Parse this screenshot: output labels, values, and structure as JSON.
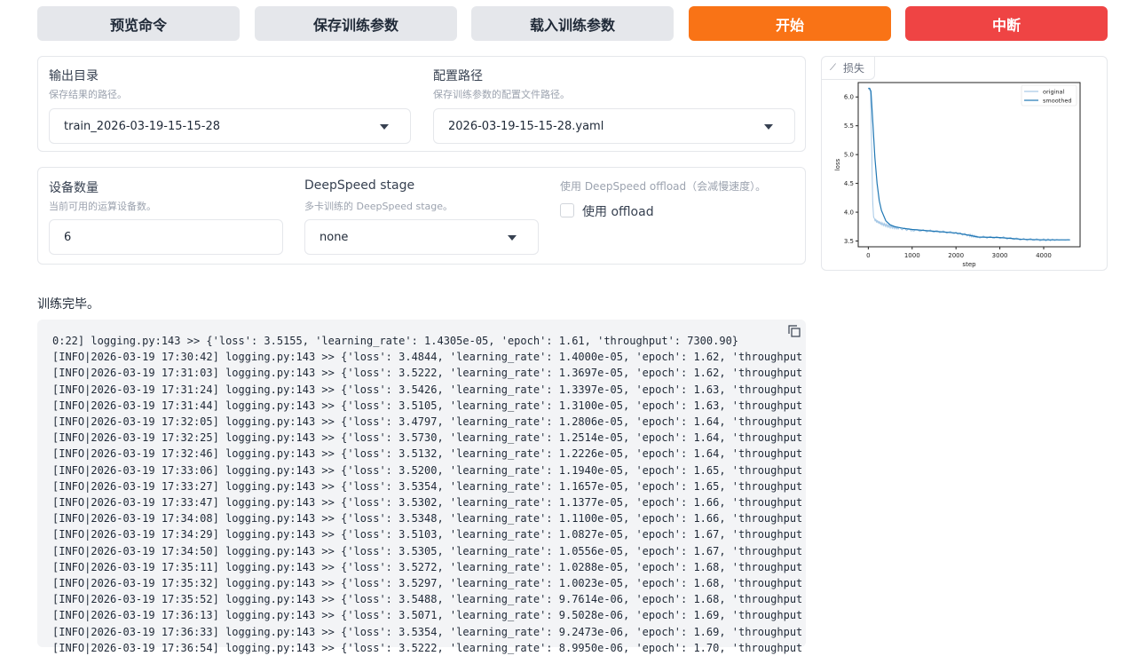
{
  "buttons": {
    "preview": "预览命令",
    "save": "保存训练参数",
    "load": "载入训练参数",
    "start": "开始",
    "abort": "中断"
  },
  "colors": {
    "start": "#f97316",
    "abort": "#ef4444"
  },
  "output_dir": {
    "label": "输出目录",
    "info": "保存结果的路径。",
    "value": "train_2026-03-19-15-15-28"
  },
  "config_path": {
    "label": "配置路径",
    "info": "保存训练参数的配置文件路径。",
    "value": "2026-03-19-15-15-28.yaml"
  },
  "device_count": {
    "label": "设备数量",
    "info": "当前可用的运算设备数。",
    "value": "6"
  },
  "ds_stage": {
    "label": "DeepSpeed stage",
    "info": "多卡训练的 DeepSpeed stage。",
    "value": "none"
  },
  "ds_offload": {
    "info": "使用 DeepSpeed offload（会减慢速度）。",
    "label": "使用 offload",
    "checked": false
  },
  "loss_tab": "损失",
  "status": "训练完毕。",
  "log_lines": [
    "0:22] logging.py:143 >> {'loss': 3.5155, 'learning_rate': 1.4305e-05, 'epoch': 1.61, 'throughput': 7300.90}",
    "[INFO|2026-03-19 17:30:42] logging.py:143 >> {'loss': 3.4844, 'learning_rate': 1.4000e-05, 'epoch': 1.62, 'throughput",
    "[INFO|2026-03-19 17:31:03] logging.py:143 >> {'loss': 3.5222, 'learning_rate': 1.3697e-05, 'epoch': 1.62, 'throughput",
    "[INFO|2026-03-19 17:31:24] logging.py:143 >> {'loss': 3.5426, 'learning_rate': 1.3397e-05, 'epoch': 1.63, 'throughput",
    "[INFO|2026-03-19 17:31:44] logging.py:143 >> {'loss': 3.5105, 'learning_rate': 1.3100e-05, 'epoch': 1.63, 'throughput",
    "[INFO|2026-03-19 17:32:05] logging.py:143 >> {'loss': 3.4797, 'learning_rate': 1.2806e-05, 'epoch': 1.64, 'throughput",
    "[INFO|2026-03-19 17:32:25] logging.py:143 >> {'loss': 3.5730, 'learning_rate': 1.2514e-05, 'epoch': 1.64, 'throughput",
    "[INFO|2026-03-19 17:32:46] logging.py:143 >> {'loss': 3.5132, 'learning_rate': 1.2226e-05, 'epoch': 1.64, 'throughput",
    "[INFO|2026-03-19 17:33:06] logging.py:143 >> {'loss': 3.5200, 'learning_rate': 1.1940e-05, 'epoch': 1.65, 'throughput",
    "[INFO|2026-03-19 17:33:27] logging.py:143 >> {'loss': 3.5354, 'learning_rate': 1.1657e-05, 'epoch': 1.65, 'throughput",
    "[INFO|2026-03-19 17:33:47] logging.py:143 >> {'loss': 3.5302, 'learning_rate': 1.1377e-05, 'epoch': 1.66, 'throughput",
    "[INFO|2026-03-19 17:34:08] logging.py:143 >> {'loss': 3.5348, 'learning_rate': 1.1100e-05, 'epoch': 1.66, 'throughput",
    "[INFO|2026-03-19 17:34:29] logging.py:143 >> {'loss': 3.5103, 'learning_rate': 1.0827e-05, 'epoch': 1.67, 'throughput",
    "[INFO|2026-03-19 17:34:50] logging.py:143 >> {'loss': 3.5305, 'learning_rate': 1.0556e-05, 'epoch': 1.67, 'throughput",
    "[INFO|2026-03-19 17:35:11] logging.py:143 >> {'loss': 3.5272, 'learning_rate': 1.0288e-05, 'epoch': 1.68, 'throughput",
    "[INFO|2026-03-19 17:35:32] logging.py:143 >> {'loss': 3.5297, 'learning_rate': 1.0023e-05, 'epoch': 1.68, 'throughput",
    "[INFO|2026-03-19 17:35:52] logging.py:143 >> {'loss': 3.5488, 'learning_rate': 9.7614e-06, 'epoch': 1.68, 'throughput",
    "[INFO|2026-03-19 17:36:13] logging.py:143 >> {'loss': 3.5071, 'learning_rate': 9.5028e-06, 'epoch': 1.69, 'throughput",
    "[INFO|2026-03-19 17:36:33] logging.py:143 >> {'loss': 3.5354, 'learning_rate': 9.2473e-06, 'epoch': 1.69, 'throughput",
    "[INFO|2026-03-19 17:36:54] logging.py:143 >> {'loss': 3.5222, 'learning_rate': 8.9950e-06, 'epoch': 1.70, 'throughput"
  ],
  "chart_data": {
    "type": "line",
    "xlabel": "step",
    "ylabel": "loss",
    "xlim": [
      -230,
      4830
    ],
    "ylim": [
      3.4,
      6.25
    ],
    "xticks": [
      0,
      1000,
      2000,
      3000,
      4000
    ],
    "yticks": [
      "3.5",
      "4.0",
      "4.5",
      "5.0",
      "5.5",
      "6.0"
    ],
    "legend": "top-right",
    "series": [
      {
        "name": "original",
        "color": "#a6c8e6",
        "x": [
          0,
          50,
          80,
          100,
          120,
          150,
          200,
          300,
          500,
          700,
          1000,
          1500,
          2000,
          2300,
          2500,
          3000,
          3500,
          4000,
          4600
        ],
        "y": [
          6.15,
          6.1,
          5.0,
          4.2,
          3.92,
          3.87,
          3.84,
          3.8,
          3.75,
          3.72,
          3.69,
          3.67,
          3.64,
          3.6,
          3.57,
          3.56,
          3.53,
          3.52,
          3.52
        ]
      },
      {
        "name": "smoothed",
        "color": "#1f77b4",
        "x": [
          0,
          30,
          60,
          100,
          150,
          200,
          250,
          300,
          400,
          500,
          600,
          800,
          1000,
          1500,
          2000,
          2300,
          2500,
          3000,
          3500,
          4000,
          4600
        ],
        "y": [
          6.15,
          6.15,
          6.1,
          5.6,
          4.95,
          4.5,
          4.2,
          4.03,
          3.85,
          3.78,
          3.75,
          3.72,
          3.7,
          3.67,
          3.64,
          3.6,
          3.57,
          3.56,
          3.53,
          3.52,
          3.52
        ]
      }
    ]
  }
}
